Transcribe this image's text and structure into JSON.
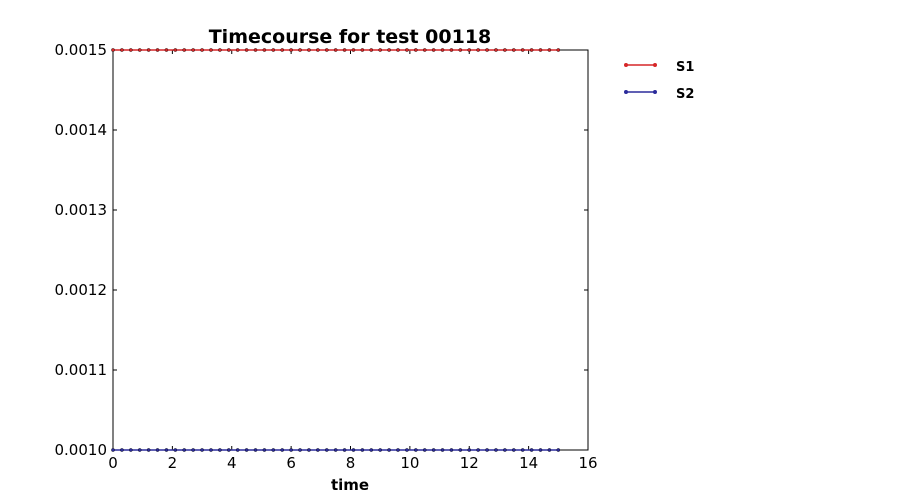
{
  "chart_data": {
    "type": "line",
    "title": "Timecourse for test 00118",
    "xlabel": "time",
    "ylabel": "",
    "xlim": [
      0,
      16
    ],
    "ylim": [
      0.001,
      0.0015
    ],
    "xticks": [
      "0",
      "2",
      "4",
      "6",
      "8",
      "10",
      "12",
      "14",
      "16"
    ],
    "yticks": [
      "0.0010",
      "0.0011",
      "0.0012",
      "0.0013",
      "0.0014",
      "0.0015"
    ],
    "grid": false,
    "legend_position": "outside-top-right",
    "x": [
      0,
      0.3,
      0.6,
      0.9,
      1.2,
      1.5,
      1.8,
      2.1,
      2.4,
      2.7,
      3.0,
      3.3,
      3.6,
      3.9,
      4.2,
      4.5,
      4.8,
      5.1,
      5.4,
      5.7,
      6.0,
      6.3,
      6.6,
      6.9,
      7.2,
      7.5,
      7.8,
      8.1,
      8.4,
      8.7,
      9.0,
      9.3,
      9.6,
      9.9,
      10.2,
      10.5,
      10.8,
      11.1,
      11.4,
      11.7,
      12.0,
      12.3,
      12.6,
      12.9,
      13.2,
      13.5,
      13.8,
      14.1,
      14.4,
      14.7,
      15.0
    ],
    "series": [
      {
        "name": "S1",
        "color": "#d62728",
        "values": [
          0.0015,
          0.0015,
          0.0015,
          0.0015,
          0.0015,
          0.0015,
          0.0015,
          0.0015,
          0.0015,
          0.0015,
          0.0015,
          0.0015,
          0.0015,
          0.0015,
          0.0015,
          0.0015,
          0.0015,
          0.0015,
          0.0015,
          0.0015,
          0.0015,
          0.0015,
          0.0015,
          0.0015,
          0.0015,
          0.0015,
          0.0015,
          0.0015,
          0.0015,
          0.0015,
          0.0015,
          0.0015,
          0.0015,
          0.0015,
          0.0015,
          0.0015,
          0.0015,
          0.0015,
          0.0015,
          0.0015,
          0.0015,
          0.0015,
          0.0015,
          0.0015,
          0.0015,
          0.0015,
          0.0015,
          0.0015,
          0.0015,
          0.0015,
          0.0015
        ]
      },
      {
        "name": "S2",
        "color": "#2b2b9b",
        "values": [
          0.001,
          0.001,
          0.001,
          0.001,
          0.001,
          0.001,
          0.001,
          0.001,
          0.001,
          0.001,
          0.001,
          0.001,
          0.001,
          0.001,
          0.001,
          0.001,
          0.001,
          0.001,
          0.001,
          0.001,
          0.001,
          0.001,
          0.001,
          0.001,
          0.001,
          0.001,
          0.001,
          0.001,
          0.001,
          0.001,
          0.001,
          0.001,
          0.001,
          0.001,
          0.001,
          0.001,
          0.001,
          0.001,
          0.001,
          0.001,
          0.001,
          0.001,
          0.001,
          0.001,
          0.001,
          0.001,
          0.001,
          0.001,
          0.001,
          0.001,
          0.001
        ]
      }
    ]
  }
}
